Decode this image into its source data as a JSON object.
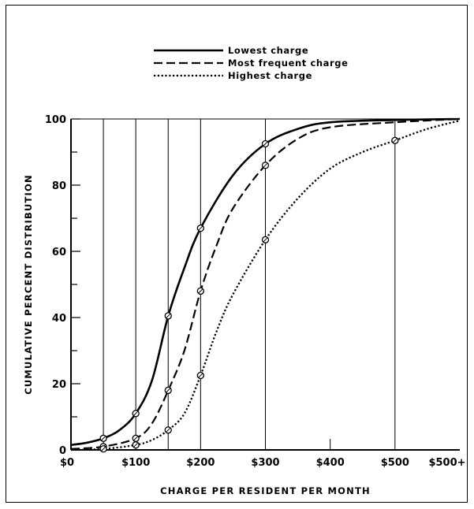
{
  "chart_data": {
    "type": "line",
    "title": "",
    "xlabel": "CHARGE PER RESIDENT PER MONTH",
    "ylabel": "CUMULATIVE PERCENT DISTRIBUTION",
    "x_categories": [
      "$0",
      "$100",
      "$200",
      "$300",
      "$400",
      "$500",
      "$500+"
    ],
    "x_gridlines": [
      50,
      100,
      150,
      200,
      300,
      500
    ],
    "xlim": [
      0,
      600
    ],
    "ylim": [
      0,
      100
    ],
    "y_ticks": [
      0,
      20,
      40,
      60,
      80,
      100
    ],
    "grid": "vertical",
    "legend_placement": "top-center",
    "series": [
      {
        "name": "Lowest charge",
        "style": "solid",
        "points": [
          [
            0,
            1.5
          ],
          [
            25,
            2.2
          ],
          [
            50,
            3.5
          ],
          [
            75,
            6
          ],
          [
            100,
            11
          ],
          [
            125,
            21
          ],
          [
            150,
            40.5
          ],
          [
            175,
            55
          ],
          [
            200,
            67
          ],
          [
            250,
            83
          ],
          [
            300,
            92.5
          ],
          [
            350,
            97
          ],
          [
            400,
            99
          ],
          [
            500,
            99.7
          ],
          [
            600,
            100
          ]
        ],
        "markers": [
          [
            50,
            3.5
          ],
          [
            100,
            11
          ],
          [
            150,
            40.5
          ],
          [
            200,
            67
          ],
          [
            300,
            92.5
          ]
        ]
      },
      {
        "name": "Most frequent charge",
        "style": "dashed",
        "points": [
          [
            0,
            0.3
          ],
          [
            50,
            1
          ],
          [
            100,
            3.5
          ],
          [
            125,
            8
          ],
          [
            150,
            18
          ],
          [
            175,
            30
          ],
          [
            200,
            48
          ],
          [
            225,
            62
          ],
          [
            250,
            73
          ],
          [
            300,
            86
          ],
          [
            350,
            94
          ],
          [
            400,
            97.5
          ],
          [
            500,
            99
          ],
          [
            600,
            100
          ]
        ],
        "markers": [
          [
            50,
            1
          ],
          [
            100,
            3.5
          ],
          [
            150,
            18
          ],
          [
            200,
            48
          ],
          [
            300,
            86
          ]
        ]
      },
      {
        "name": "Highest charge",
        "style": "dotted",
        "points": [
          [
            0,
            0
          ],
          [
            50,
            0.3
          ],
          [
            100,
            1.5
          ],
          [
            125,
            3
          ],
          [
            150,
            6
          ],
          [
            175,
            11
          ],
          [
            200,
            22.5
          ],
          [
            225,
            36
          ],
          [
            250,
            47
          ],
          [
            300,
            63.5
          ],
          [
            350,
            76
          ],
          [
            400,
            85
          ],
          [
            450,
            90
          ],
          [
            500,
            93.5
          ],
          [
            550,
            97
          ],
          [
            600,
            99.5
          ]
        ],
        "markers": [
          [
            50,
            0.3
          ],
          [
            100,
            1.5
          ],
          [
            150,
            6
          ],
          [
            200,
            22.5
          ],
          [
            300,
            63.5
          ],
          [
            500,
            93.5
          ]
        ]
      }
    ]
  }
}
